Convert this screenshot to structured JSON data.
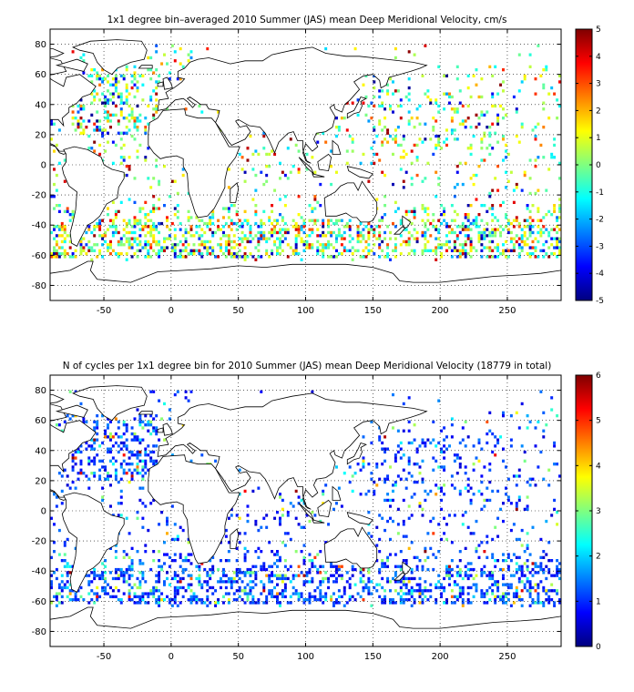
{
  "figure": {
    "panels": [
      {
        "id": "velocity",
        "title": "1x1 degree bin–averaged 2010 Summer (JAS) mean Deep Meridional Velocity, cm/s",
        "colorbar": {
          "min": -5,
          "max": 5,
          "ticks": [
            "5",
            "4",
            "3",
            "2",
            "1",
            "0",
            "-1",
            "-2",
            "-3",
            "-4",
            "-5"
          ]
        },
        "seed": 17
      },
      {
        "id": "counts",
        "title": "N of cycles per 1x1 degree bin for 2010 Summer (JAS) mean Deep Meridional Velocity (18779 in total)",
        "colorbar": {
          "min": 0,
          "max": 6,
          "ticks": [
            "6",
            "5",
            "4",
            "3",
            "2",
            "1",
            "0"
          ]
        },
        "seed": 91
      }
    ]
  },
  "chart_data": [
    {
      "type": "heatmap",
      "title": "1x1 degree bin–averaged 2010 Summer (JAS) mean Deep Meridional Velocity, cm/s",
      "xlim": [
        -90,
        290
      ],
      "ylim": [
        -90,
        90
      ],
      "xticks": [
        -50,
        0,
        50,
        100,
        150,
        200,
        250
      ],
      "yticks": [
        80,
        60,
        40,
        20,
        0,
        -20,
        -40,
        -60,
        -80
      ],
      "grid": true,
      "colormap": "jet",
      "color_range": [
        -5,
        5
      ]
    },
    {
      "type": "heatmap",
      "title": "N of cycles per 1x1 degree bin for 2010 Summer (JAS) mean Deep Meridional Velocity (18779 in total)",
      "xlim": [
        -90,
        290
      ],
      "ylim": [
        -90,
        90
      ],
      "xticks": [
        -50,
        0,
        50,
        100,
        150,
        200,
        250
      ],
      "yticks": [
        80,
        60,
        40,
        20,
        0,
        -20,
        -40,
        -60,
        -80
      ],
      "grid": true,
      "colormap": "jet",
      "color_range": [
        0,
        6
      ],
      "total_cycles": 18779
    }
  ]
}
